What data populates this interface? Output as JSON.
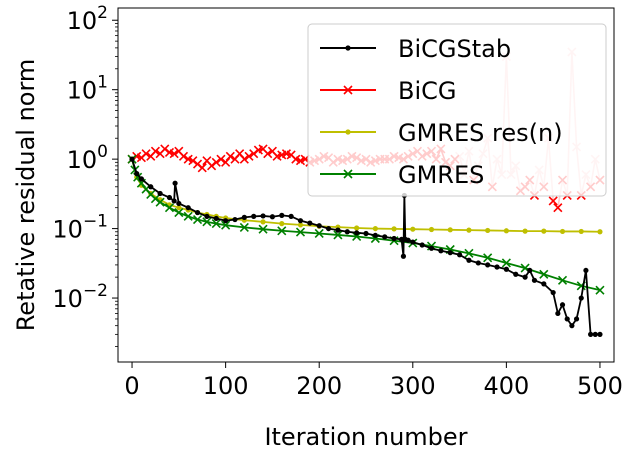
{
  "chart_data": {
    "type": "line",
    "xlabel": "Iteration number",
    "ylabel": "Retative residual norm",
    "xlim": [
      -15,
      515
    ],
    "ylim": [
      0.0012,
      150
    ],
    "yscale": "log",
    "xticks": [
      0,
      100,
      200,
      300,
      400,
      500
    ],
    "xtick_labels": [
      "0",
      "100",
      "200",
      "300",
      "400",
      "500"
    ],
    "yticks": [
      0.01,
      0.1,
      1,
      10,
      100
    ],
    "ytick_labels": [
      {
        "base": "10",
        "exp": "−2"
      },
      {
        "base": "10",
        "exp": "−1"
      },
      {
        "base": "10",
        "exp": "0"
      },
      {
        "base": "10",
        "exp": "1"
      },
      {
        "base": "10",
        "exp": "2"
      }
    ],
    "grid": false,
    "legend_position": "top-right",
    "series": [
      {
        "name": "BiCGStab",
        "color": "#000000",
        "marker": "dot",
        "x": [
          0,
          5,
          10,
          20,
          30,
          40,
          45,
          46,
          50,
          60,
          70,
          80,
          90,
          100,
          110,
          120,
          130,
          140,
          150,
          160,
          170,
          180,
          190,
          200,
          210,
          220,
          230,
          240,
          250,
          260,
          270,
          280,
          288,
          290,
          291,
          292,
          295,
          300,
          310,
          320,
          330,
          340,
          350,
          360,
          370,
          380,
          390,
          400,
          410,
          420,
          425,
          430,
          440,
          450,
          455,
          460,
          465,
          470,
          475,
          480,
          485,
          490,
          495,
          500
        ],
        "y": [
          1.0,
          0.62,
          0.52,
          0.4,
          0.32,
          0.28,
          0.25,
          0.45,
          0.23,
          0.2,
          0.17,
          0.15,
          0.14,
          0.13,
          0.135,
          0.145,
          0.15,
          0.152,
          0.148,
          0.155,
          0.15,
          0.13,
          0.12,
          0.11,
          0.1,
          0.095,
          0.09,
          0.087,
          0.085,
          0.08,
          0.076,
          0.072,
          0.07,
          0.04,
          0.3,
          0.07,
          0.068,
          0.064,
          0.058,
          0.052,
          0.048,
          0.045,
          0.042,
          0.035,
          0.032,
          0.03,
          0.028,
          0.026,
          0.022,
          0.02,
          0.025,
          0.018,
          0.016,
          0.012,
          0.006,
          0.008,
          0.005,
          0.004,
          0.005,
          0.01,
          0.025,
          0.003,
          0.003,
          0.003
        ]
      },
      {
        "name": "BiCG",
        "color": "#ff0000",
        "highlight_color": "#ffc8c8",
        "marker": "x",
        "x": [
          0,
          5,
          10,
          15,
          20,
          25,
          30,
          35,
          40,
          45,
          50,
          55,
          60,
          65,
          70,
          75,
          80,
          85,
          90,
          95,
          100,
          105,
          110,
          115,
          120,
          125,
          130,
          135,
          140,
          145,
          150,
          155,
          160,
          165,
          170,
          175,
          180,
          185,
          190,
          195,
          200,
          205,
          210,
          215,
          220,
          225,
          230,
          235,
          240,
          245,
          250,
          255,
          260,
          265,
          270,
          275,
          280,
          285,
          290,
          295,
          300,
          305,
          310,
          315,
          320,
          325,
          330,
          335,
          340,
          345,
          350,
          355,
          360,
          365,
          370,
          375,
          380,
          385,
          390,
          395,
          400,
          405,
          410,
          415,
          420,
          425,
          430,
          435,
          440,
          445,
          450,
          455,
          460,
          465,
          470,
          475,
          480,
          485,
          490,
          495,
          500
        ],
        "y": [
          1.0,
          1.1,
          1.05,
          1.2,
          1.1,
          1.3,
          1.2,
          1.4,
          1.25,
          1.2,
          1.3,
          1.1,
          1.0,
          0.95,
          0.85,
          0.75,
          0.95,
          0.8,
          0.9,
          1.0,
          0.9,
          1.1,
          1.0,
          1.2,
          1.0,
          1.1,
          1.2,
          1.35,
          1.4,
          1.2,
          1.3,
          1.1,
          1.15,
          1.2,
          1.15,
          1.0,
          0.95,
          1.0,
          0.9,
          0.95,
          1.0,
          1.1,
          1.05,
          0.9,
          1.0,
          0.95,
          1.0,
          1.1,
          1.05,
          0.95,
          1.0,
          0.9,
          0.95,
          1.0,
          1.0,
          1.0,
          1.1,
          1.05,
          1.0,
          1.1,
          1.2,
          1.3,
          1.1,
          1.2,
          1.3,
          1.0,
          1.4,
          0.9,
          0.8,
          1.0,
          1.1,
          0.6,
          1.3,
          0.5,
          0.8,
          1.2,
          2.0,
          0.4,
          1.0,
          0.6,
          30.0,
          0.6,
          0.8,
          0.35,
          0.4,
          0.5,
          0.3,
          0.7,
          0.4,
          2.0,
          0.25,
          0.2,
          0.5,
          0.3,
          35.0,
          1.5,
          0.3,
          0.6,
          0.4,
          1.0,
          0.5
        ]
      },
      {
        "name": "GMRES res(n)",
        "color": "#bfbf00",
        "marker": "dot",
        "x": [
          0,
          5,
          10,
          20,
          30,
          40,
          50,
          60,
          70,
          80,
          90,
          100,
          120,
          140,
          160,
          180,
          200,
          220,
          240,
          260,
          280,
          300,
          320,
          340,
          360,
          380,
          400,
          420,
          440,
          460,
          480,
          500
        ],
        "y": [
          1.0,
          0.55,
          0.42,
          0.32,
          0.26,
          0.22,
          0.2,
          0.185,
          0.17,
          0.16,
          0.15,
          0.142,
          0.132,
          0.125,
          0.118,
          0.113,
          0.108,
          0.105,
          0.102,
          0.1,
          0.099,
          0.098,
          0.097,
          0.096,
          0.095,
          0.094,
          0.093,
          0.092,
          0.092,
          0.091,
          0.091,
          0.09
        ]
      },
      {
        "name": "GMRES",
        "color": "#008000",
        "marker": "x",
        "x": [
          0,
          3,
          6,
          10,
          15,
          20,
          25,
          30,
          40,
          50,
          60,
          70,
          80,
          90,
          100,
          120,
          140,
          160,
          180,
          200,
          220,
          240,
          260,
          280,
          300,
          320,
          340,
          360,
          380,
          400,
          420,
          440,
          460,
          480,
          500
        ],
        "y": [
          1.0,
          0.7,
          0.55,
          0.45,
          0.37,
          0.31,
          0.27,
          0.24,
          0.2,
          0.17,
          0.15,
          0.135,
          0.125,
          0.118,
          0.112,
          0.104,
          0.098,
          0.093,
          0.089,
          0.085,
          0.081,
          0.077,
          0.072,
          0.067,
          0.062,
          0.056,
          0.05,
          0.044,
          0.038,
          0.032,
          0.027,
          0.022,
          0.018,
          0.015,
          0.013
        ]
      }
    ]
  }
}
